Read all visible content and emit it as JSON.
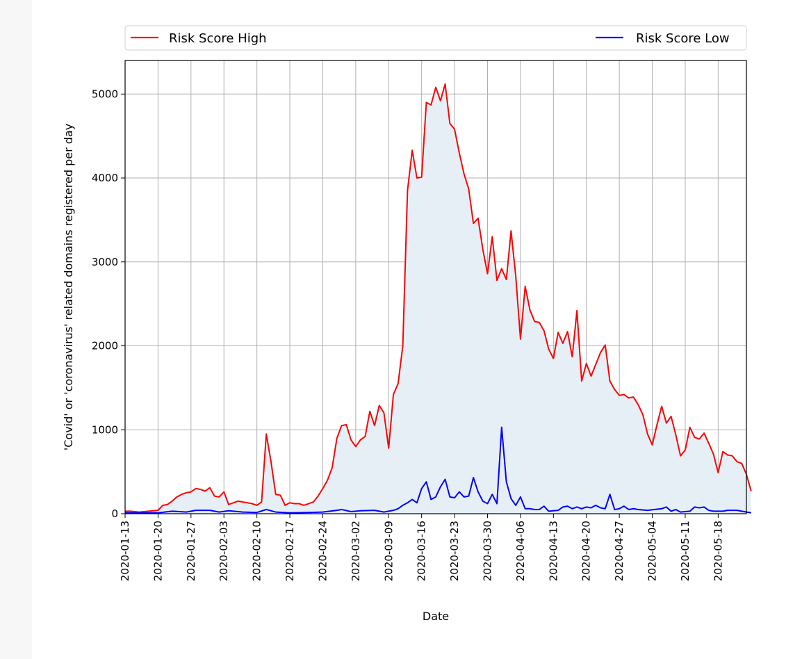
{
  "chart_data": {
    "type": "line",
    "xlabel": "Date",
    "ylabel": "'Covid' or 'coronavirus' related domains registered per day",
    "x_tick_labels": [
      "2020-01-13",
      "2020-01-20",
      "2020-01-27",
      "2020-02-03",
      "2020-02-10",
      "2020-02-17",
      "2020-02-24",
      "2020-03-02",
      "2020-03-09",
      "2020-03-16",
      "2020-03-23",
      "2020-03-30",
      "2020-04-06",
      "2020-04-13",
      "2020-04-20",
      "2020-04-27",
      "2020-05-04",
      "2020-05-11",
      "2020-05-18"
    ],
    "y_ticks": [
      0,
      1000,
      2000,
      3000,
      4000,
      5000
    ],
    "xlim": [
      "2020-01-13",
      "2020-05-24"
    ],
    "ylim": [
      0,
      5400
    ],
    "grid": true,
    "legend_placement": "top, above plot (two columns)",
    "area_fill": "under Risk Score High, light blue-grey",
    "series": [
      {
        "name": "Risk Score High",
        "color": "#ff0000",
        "points": [
          [
            "2020-01-13",
            30
          ],
          [
            "2020-01-14",
            30
          ],
          [
            "2020-01-15",
            25
          ],
          [
            "2020-01-16",
            20
          ],
          [
            "2020-01-17",
            25
          ],
          [
            "2020-01-18",
            30
          ],
          [
            "2020-01-19",
            35
          ],
          [
            "2020-01-20",
            40
          ],
          [
            "2020-01-21",
            100
          ],
          [
            "2020-01-22",
            110
          ],
          [
            "2020-01-23",
            150
          ],
          [
            "2020-01-24",
            200
          ],
          [
            "2020-01-25",
            230
          ],
          [
            "2020-01-26",
            250
          ],
          [
            "2020-01-27",
            260
          ],
          [
            "2020-01-28",
            300
          ],
          [
            "2020-01-29",
            290
          ],
          [
            "2020-01-30",
            270
          ],
          [
            "2020-01-31",
            310
          ],
          [
            "2020-02-01",
            210
          ],
          [
            "2020-02-02",
            200
          ],
          [
            "2020-02-03",
            260
          ],
          [
            "2020-02-04",
            110
          ],
          [
            "2020-02-05",
            130
          ],
          [
            "2020-02-06",
            150
          ],
          [
            "2020-02-07",
            140
          ],
          [
            "2020-02-08",
            130
          ],
          [
            "2020-02-09",
            120
          ],
          [
            "2020-02-10",
            100
          ],
          [
            "2020-02-11",
            140
          ],
          [
            "2020-02-12",
            950
          ],
          [
            "2020-02-13",
            620
          ],
          [
            "2020-02-14",
            230
          ],
          [
            "2020-02-15",
            220
          ],
          [
            "2020-02-16",
            100
          ],
          [
            "2020-02-17",
            130
          ],
          [
            "2020-02-18",
            120
          ],
          [
            "2020-02-19",
            120
          ],
          [
            "2020-02-20",
            100
          ],
          [
            "2020-02-21",
            120
          ],
          [
            "2020-02-22",
            140
          ],
          [
            "2020-02-23",
            210
          ],
          [
            "2020-02-24",
            300
          ],
          [
            "2020-02-25",
            400
          ],
          [
            "2020-02-26",
            550
          ],
          [
            "2020-02-27",
            900
          ],
          [
            "2020-02-28",
            1050
          ],
          [
            "2020-02-29",
            1060
          ],
          [
            "2020-03-01",
            880
          ],
          [
            "2020-03-02",
            800
          ],
          [
            "2020-03-03",
            880
          ],
          [
            "2020-03-04",
            920
          ],
          [
            "2020-03-05",
            1220
          ],
          [
            "2020-03-06",
            1050
          ],
          [
            "2020-03-07",
            1290
          ],
          [
            "2020-03-08",
            1200
          ],
          [
            "2020-03-09",
            780
          ],
          [
            "2020-03-10",
            1420
          ],
          [
            "2020-03-11",
            1550
          ],
          [
            "2020-03-12",
            2000
          ],
          [
            "2020-03-13",
            3850
          ],
          [
            "2020-03-14",
            4330
          ],
          [
            "2020-03-15",
            4000
          ],
          [
            "2020-03-16",
            4010
          ],
          [
            "2020-03-17",
            4900
          ],
          [
            "2020-03-18",
            4870
          ],
          [
            "2020-03-19",
            5080
          ],
          [
            "2020-03-20",
            4920
          ],
          [
            "2020-03-21",
            5120
          ],
          [
            "2020-03-22",
            4650
          ],
          [
            "2020-03-23",
            4580
          ],
          [
            "2020-03-24",
            4300
          ],
          [
            "2020-03-25",
            4050
          ],
          [
            "2020-03-26",
            3870
          ],
          [
            "2020-03-27",
            3460
          ],
          [
            "2020-03-28",
            3520
          ],
          [
            "2020-03-29",
            3150
          ],
          [
            "2020-03-30",
            2860
          ],
          [
            "2020-03-31",
            3300
          ],
          [
            "2020-04-01",
            2780
          ],
          [
            "2020-04-02",
            2920
          ],
          [
            "2020-04-03",
            2790
          ],
          [
            "2020-04-04",
            3370
          ],
          [
            "2020-04-05",
            2830
          ],
          [
            "2020-04-06",
            2080
          ],
          [
            "2020-04-07",
            2710
          ],
          [
            "2020-04-08",
            2430
          ],
          [
            "2020-04-09",
            2290
          ],
          [
            "2020-04-10",
            2280
          ],
          [
            "2020-04-11",
            2180
          ],
          [
            "2020-04-12",
            1960
          ],
          [
            "2020-04-13",
            1850
          ],
          [
            "2020-04-14",
            2160
          ],
          [
            "2020-04-15",
            2030
          ],
          [
            "2020-04-16",
            2170
          ],
          [
            "2020-04-17",
            1870
          ],
          [
            "2020-04-18",
            2420
          ],
          [
            "2020-04-19",
            1580
          ],
          [
            "2020-04-20",
            1790
          ],
          [
            "2020-04-21",
            1640
          ],
          [
            "2020-04-22",
            1780
          ],
          [
            "2020-04-23",
            1920
          ],
          [
            "2020-04-24",
            2010
          ],
          [
            "2020-04-25",
            1580
          ],
          [
            "2020-04-26",
            1480
          ],
          [
            "2020-04-27",
            1410
          ],
          [
            "2020-04-28",
            1420
          ],
          [
            "2020-04-29",
            1380
          ],
          [
            "2020-04-30",
            1390
          ],
          [
            "2020-05-01",
            1300
          ],
          [
            "2020-05-02",
            1180
          ],
          [
            "2020-05-03",
            950
          ],
          [
            "2020-05-04",
            820
          ],
          [
            "2020-05-05",
            1060
          ],
          [
            "2020-05-06",
            1280
          ],
          [
            "2020-05-07",
            1080
          ],
          [
            "2020-05-08",
            1160
          ],
          [
            "2020-05-09",
            940
          ],
          [
            "2020-05-10",
            690
          ],
          [
            "2020-05-11",
            760
          ],
          [
            "2020-05-12",
            1030
          ],
          [
            "2020-05-13",
            910
          ],
          [
            "2020-05-14",
            890
          ],
          [
            "2020-05-15",
            960
          ],
          [
            "2020-05-16",
            840
          ],
          [
            "2020-05-17",
            710
          ],
          [
            "2020-05-18",
            490
          ],
          [
            "2020-05-19",
            740
          ],
          [
            "2020-05-20",
            700
          ],
          [
            "2020-05-21",
            690
          ],
          [
            "2020-05-22",
            620
          ],
          [
            "2020-05-23",
            600
          ],
          [
            "2020-05-24",
            470
          ],
          [
            "2020-05-25",
            270
          ]
        ]
      },
      {
        "name": "Risk Score Low",
        "color": "#0000ff",
        "points": [
          [
            "2020-01-13",
            10
          ],
          [
            "2020-01-16",
            10
          ],
          [
            "2020-01-20",
            10
          ],
          [
            "2020-01-23",
            30
          ],
          [
            "2020-01-26",
            20
          ],
          [
            "2020-01-28",
            40
          ],
          [
            "2020-01-31",
            40
          ],
          [
            "2020-02-02",
            20
          ],
          [
            "2020-02-04",
            35
          ],
          [
            "2020-02-07",
            20
          ],
          [
            "2020-02-10",
            15
          ],
          [
            "2020-02-12",
            50
          ],
          [
            "2020-02-14",
            20
          ],
          [
            "2020-02-17",
            10
          ],
          [
            "2020-02-21",
            15
          ],
          [
            "2020-02-24",
            20
          ],
          [
            "2020-02-27",
            40
          ],
          [
            "2020-02-28",
            50
          ],
          [
            "2020-03-01",
            25
          ],
          [
            "2020-03-03",
            35
          ],
          [
            "2020-03-06",
            40
          ],
          [
            "2020-03-08",
            20
          ],
          [
            "2020-03-10",
            40
          ],
          [
            "2020-03-11",
            60
          ],
          [
            "2020-03-12",
            100
          ],
          [
            "2020-03-13",
            130
          ],
          [
            "2020-03-14",
            170
          ],
          [
            "2020-03-15",
            130
          ],
          [
            "2020-03-16",
            300
          ],
          [
            "2020-03-17",
            380
          ],
          [
            "2020-03-18",
            170
          ],
          [
            "2020-03-19",
            200
          ],
          [
            "2020-03-20",
            320
          ],
          [
            "2020-03-21",
            410
          ],
          [
            "2020-03-22",
            200
          ],
          [
            "2020-03-23",
            190
          ],
          [
            "2020-03-24",
            260
          ],
          [
            "2020-03-25",
            200
          ],
          [
            "2020-03-26",
            210
          ],
          [
            "2020-03-27",
            430
          ],
          [
            "2020-03-28",
            260
          ],
          [
            "2020-03-29",
            150
          ],
          [
            "2020-03-30",
            120
          ],
          [
            "2020-03-31",
            230
          ],
          [
            "2020-04-01",
            120
          ],
          [
            "2020-04-02",
            1030
          ],
          [
            "2020-04-03",
            380
          ],
          [
            "2020-04-04",
            180
          ],
          [
            "2020-04-05",
            100
          ],
          [
            "2020-04-06",
            200
          ],
          [
            "2020-04-07",
            60
          ],
          [
            "2020-04-08",
            60
          ],
          [
            "2020-04-09",
            50
          ],
          [
            "2020-04-10",
            50
          ],
          [
            "2020-04-11",
            90
          ],
          [
            "2020-04-12",
            30
          ],
          [
            "2020-04-14",
            40
          ],
          [
            "2020-04-15",
            80
          ],
          [
            "2020-04-16",
            90
          ],
          [
            "2020-04-17",
            60
          ],
          [
            "2020-04-18",
            80
          ],
          [
            "2020-04-19",
            60
          ],
          [
            "2020-04-20",
            80
          ],
          [
            "2020-04-21",
            70
          ],
          [
            "2020-04-22",
            100
          ],
          [
            "2020-04-23",
            70
          ],
          [
            "2020-04-24",
            60
          ],
          [
            "2020-04-25",
            230
          ],
          [
            "2020-04-26",
            50
          ],
          [
            "2020-04-27",
            60
          ],
          [
            "2020-04-28",
            90
          ],
          [
            "2020-04-29",
            50
          ],
          [
            "2020-04-30",
            60
          ],
          [
            "2020-05-01",
            50
          ],
          [
            "2020-05-03",
            40
          ],
          [
            "2020-05-06",
            60
          ],
          [
            "2020-05-07",
            80
          ],
          [
            "2020-05-08",
            30
          ],
          [
            "2020-05-09",
            50
          ],
          [
            "2020-05-10",
            20
          ],
          [
            "2020-05-12",
            30
          ],
          [
            "2020-05-13",
            80
          ],
          [
            "2020-05-14",
            70
          ],
          [
            "2020-05-15",
            80
          ],
          [
            "2020-05-16",
            40
          ],
          [
            "2020-05-17",
            30
          ],
          [
            "2020-05-19",
            30
          ],
          [
            "2020-05-20",
            40
          ],
          [
            "2020-05-22",
            40
          ],
          [
            "2020-05-24",
            20
          ],
          [
            "2020-05-25",
            10
          ]
        ]
      }
    ]
  }
}
